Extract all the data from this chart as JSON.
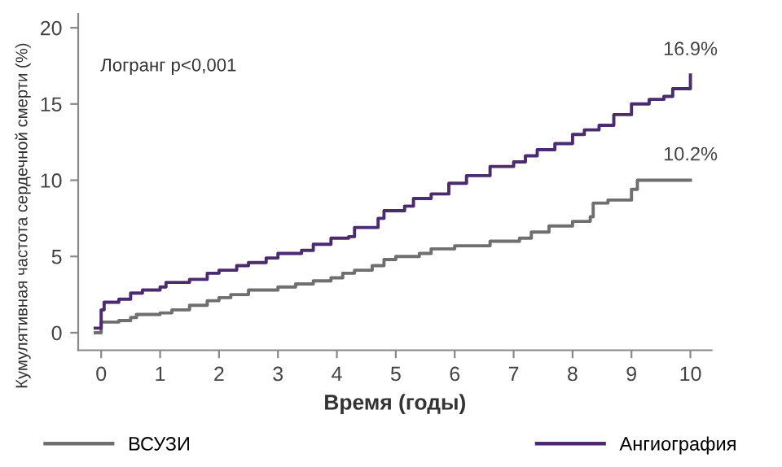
{
  "chart_data": {
    "type": "step",
    "xlabel": "Время (годы)",
    "ylabel": "Кумулятивная частота сердечной смерти (%)",
    "xlim": [
      -0.39,
      10.36
    ],
    "ylim": [
      -1.15,
      20.9
    ],
    "xticks": [
      0,
      1,
      2,
      3,
      4,
      5,
      6,
      7,
      8,
      9,
      10
    ],
    "yticks": [
      0,
      5,
      10,
      15,
      20
    ],
    "grid": false,
    "legend": "bottom",
    "marker": "none",
    "line_style": "solid",
    "annotations": [
      {
        "text": "16.9%",
        "x": 10,
        "y": 16.9
      },
      {
        "text": "10.2%",
        "x": 10,
        "y": 10.0
      },
      "Логранг p<0,001"
    ],
    "series": [
      {
        "name": "ВСУЗИ",
        "color": "#6f6f6f",
        "x": [
          -0.1,
          0,
          0.3,
          0.5,
          0.6,
          1.0,
          1.2,
          1.5,
          1.8,
          2.0,
          2.2,
          2.5,
          3.0,
          3.3,
          3.6,
          3.9,
          4.1,
          4.3,
          4.6,
          4.8,
          5.0,
          5.4,
          5.6,
          6.0,
          6.6,
          7.1,
          7.3,
          7.6,
          8.0,
          8.3,
          8.35,
          8.6,
          9.0,
          9.1,
          10.0
        ],
        "values": [
          0,
          0.7,
          0.8,
          1.0,
          1.2,
          1.3,
          1.5,
          1.8,
          2.1,
          2.3,
          2.5,
          2.8,
          3.0,
          3.2,
          3.4,
          3.6,
          3.9,
          4.1,
          4.4,
          4.8,
          5.0,
          5.2,
          5.5,
          5.7,
          6.0,
          6.2,
          6.6,
          7.0,
          7.3,
          7.6,
          8.5,
          8.7,
          9.4,
          10.0,
          10.0
        ]
      },
      {
        "name": "Ангиография",
        "color": "#4b2a6e",
        "x": [
          -0.1,
          0,
          0.05,
          0.3,
          0.5,
          0.7,
          1.0,
          1.1,
          1.5,
          1.8,
          2.0,
          2.3,
          2.5,
          2.8,
          3.0,
          3.4,
          3.6,
          3.9,
          4.2,
          4.3,
          4.7,
          4.8,
          5.15,
          5.3,
          5.6,
          5.9,
          6.2,
          6.6,
          7.0,
          7.2,
          7.4,
          7.7,
          8.0,
          8.2,
          8.45,
          8.7,
          9.0,
          9.3,
          9.55,
          9.7,
          10.0
        ],
        "values": [
          0.3,
          1.5,
          2.0,
          2.2,
          2.6,
          2.8,
          3.0,
          3.3,
          3.5,
          3.9,
          4.1,
          4.4,
          4.6,
          4.9,
          5.2,
          5.4,
          5.8,
          6.2,
          6.3,
          6.9,
          7.5,
          8.0,
          8.3,
          8.8,
          9.1,
          9.8,
          10.3,
          10.9,
          11.2,
          11.6,
          12.0,
          12.4,
          13.0,
          13.3,
          13.6,
          14.3,
          15.0,
          15.3,
          15.5,
          16.0,
          16.9
        ]
      }
    ]
  }
}
